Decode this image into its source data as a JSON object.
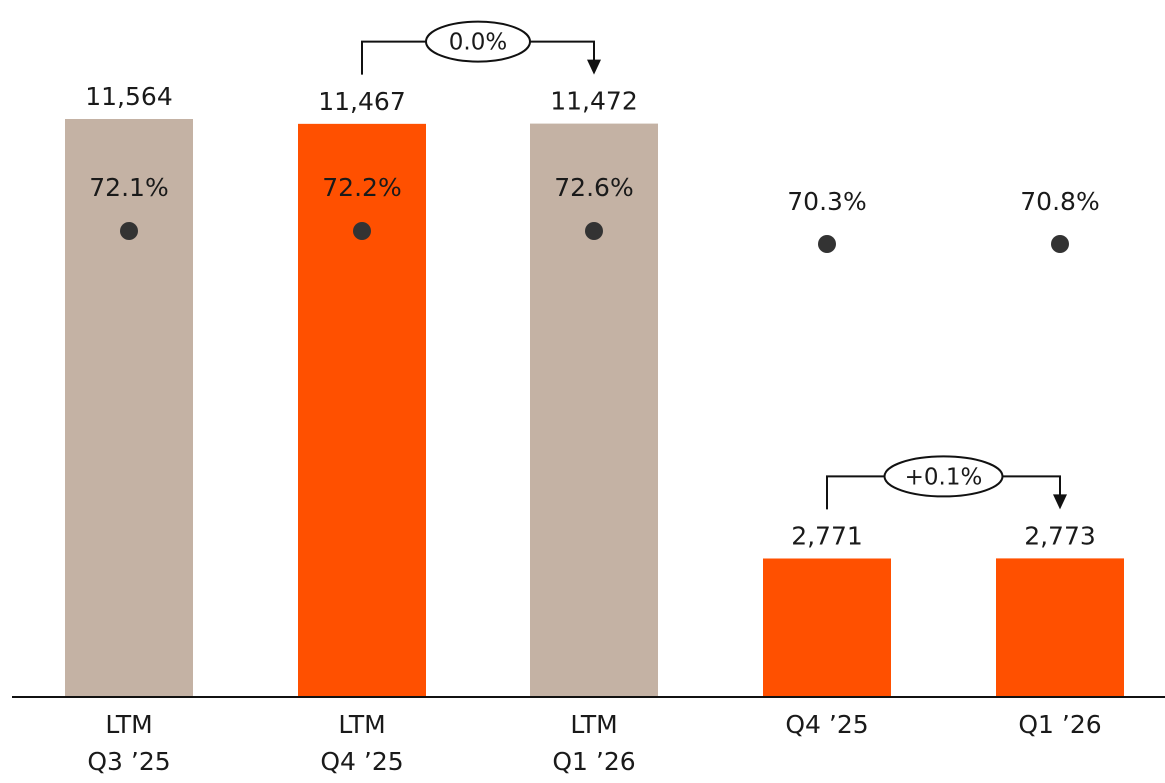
{
  "chart_data": {
    "type": "bar",
    "categories": [
      [
        "LTM",
        "Q3 ’25"
      ],
      [
        "LTM",
        "Q4 ’25"
      ],
      [
        "LTM",
        "Q1 ’26"
      ],
      [
        "Q4 ’25"
      ],
      [
        "Q1 ’26"
      ]
    ],
    "values": [
      11564,
      11467,
      11472,
      2771,
      2773
    ],
    "value_labels": [
      "11,564",
      "11,467",
      "11,472",
      "2,771",
      "2,773"
    ],
    "percent_labels": [
      "72.1%",
      "72.2%",
      "72.6%",
      "70.3%",
      "70.8%"
    ],
    "percent_values": [
      72.1,
      72.2,
      72.6,
      70.3,
      70.8
    ],
    "bar_colors": [
      "#c4b2a4",
      "#ff5000",
      "#c4b2a4",
      "#ff5000",
      "#ff5000"
    ],
    "dot_color": "#333333",
    "ylim": [
      0,
      11564
    ],
    "grid": false,
    "annotations": [
      {
        "from": 1,
        "to": 2,
        "label": "0.0%"
      },
      {
        "from": 3,
        "to": 4,
        "label": "+0.1%"
      }
    ]
  }
}
